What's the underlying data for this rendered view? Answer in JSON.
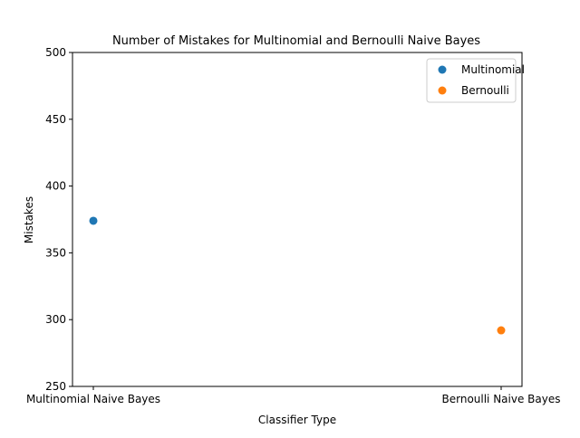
{
  "chart_data": {
    "type": "scatter",
    "title": "Number of Mistakes for Multinomial and Bernoulli Naive Bayes",
    "xlabel": "Classifier Type",
    "ylabel": "Mistakes",
    "categories": [
      "Multinomial Naive Bayes",
      "Bernoulli Naive Bayes"
    ],
    "ylim": [
      250,
      500
    ],
    "yticks": [
      250,
      300,
      350,
      400,
      450,
      500
    ],
    "grid": false,
    "legend_position": "top-right",
    "series": [
      {
        "name": "Multinomial",
        "color": "#1f77b4",
        "x": [
          "Multinomial Naive Bayes"
        ],
        "values": [
          374
        ]
      },
      {
        "name": "Bernoulli",
        "color": "#ff7f0e",
        "x": [
          "Bernoulli Naive Bayes"
        ],
        "values": [
          292
        ]
      }
    ]
  }
}
